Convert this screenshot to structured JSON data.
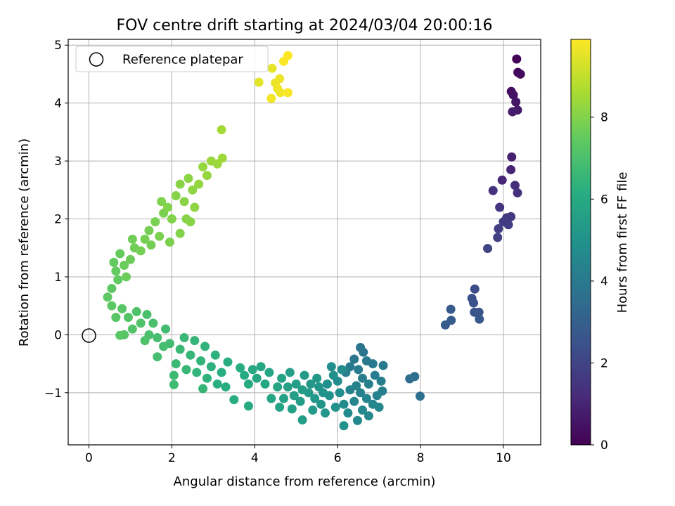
{
  "chart_data": {
    "type": "scatter",
    "title": "FOV centre drift starting at 2024/03/04 20:00:16",
    "xlabel": "Angular distance from reference (arcmin)",
    "ylabel": "Rotation from reference (arcmin)",
    "xlim": [
      -0.5,
      10.9
    ],
    "ylim": [
      -1.9,
      5.1
    ],
    "xticks": [
      "0",
      "2",
      "4",
      "6",
      "8",
      "10"
    ],
    "yticks": [
      "−1",
      "0",
      "1",
      "2",
      "3",
      "4",
      "5"
    ],
    "grid": true,
    "legend": {
      "location": "top-left",
      "entries": [
        "Reference platepar"
      ]
    },
    "colorbar": {
      "label": "Hours from first FF file",
      "min": 0,
      "max": 9.9,
      "ticks": [
        "0",
        "2",
        "4",
        "6",
        "8"
      ],
      "colormap": "viridis"
    },
    "reference_point": {
      "x": 0,
      "y": 0
    },
    "points": [
      {
        "x": 10.32,
        "y": 4.76,
        "t": 0.1
      },
      {
        "x": 10.35,
        "y": 4.53,
        "t": 0.2
      },
      {
        "x": 10.41,
        "y": 4.5,
        "t": 0.3
      },
      {
        "x": 10.19,
        "y": 4.2,
        "t": 0.4
      },
      {
        "x": 10.24,
        "y": 4.14,
        "t": 0.5
      },
      {
        "x": 10.3,
        "y": 4.02,
        "t": 0.6
      },
      {
        "x": 10.34,
        "y": 3.88,
        "t": 0.7
      },
      {
        "x": 10.22,
        "y": 3.85,
        "t": 0.8
      },
      {
        "x": 10.2,
        "y": 3.07,
        "t": 0.9
      },
      {
        "x": 10.18,
        "y": 2.85,
        "t": 1.0
      },
      {
        "x": 9.97,
        "y": 2.67,
        "t": 1.1
      },
      {
        "x": 10.28,
        "y": 2.58,
        "t": 1.2
      },
      {
        "x": 10.34,
        "y": 2.45,
        "t": 1.3
      },
      {
        "x": 9.75,
        "y": 2.49,
        "t": 1.4
      },
      {
        "x": 9.91,
        "y": 2.2,
        "t": 1.5
      },
      {
        "x": 10.18,
        "y": 2.04,
        "t": 1.6
      },
      {
        "x": 10.08,
        "y": 2.02,
        "t": 1.65
      },
      {
        "x": 10.0,
        "y": 1.95,
        "t": 1.7
      },
      {
        "x": 10.12,
        "y": 1.9,
        "t": 1.75
      },
      {
        "x": 9.88,
        "y": 1.83,
        "t": 1.8
      },
      {
        "x": 9.86,
        "y": 1.68,
        "t": 1.9
      },
      {
        "x": 9.62,
        "y": 1.49,
        "t": 2.0
      },
      {
        "x": 9.31,
        "y": 0.79,
        "t": 2.3
      },
      {
        "x": 9.24,
        "y": 0.63,
        "t": 2.4
      },
      {
        "x": 9.28,
        "y": 0.55,
        "t": 2.5
      },
      {
        "x": 9.41,
        "y": 0.39,
        "t": 2.55
      },
      {
        "x": 9.3,
        "y": 0.39,
        "t": 2.6
      },
      {
        "x": 9.42,
        "y": 0.27,
        "t": 2.7
      },
      {
        "x": 8.73,
        "y": 0.44,
        "t": 2.8
      },
      {
        "x": 8.74,
        "y": 0.25,
        "t": 2.85
      },
      {
        "x": 8.6,
        "y": 0.17,
        "t": 2.9
      },
      {
        "x": 7.74,
        "y": -0.76,
        "t": 3.5
      },
      {
        "x": 7.86,
        "y": -0.72,
        "t": 3.55
      },
      {
        "x": 7.99,
        "y": -1.06,
        "t": 3.6
      },
      {
        "x": 6.55,
        "y": -0.22,
        "t": 3.8
      },
      {
        "x": 6.62,
        "y": -0.3,
        "t": 3.85
      },
      {
        "x": 6.4,
        "y": -0.42,
        "t": 3.9
      },
      {
        "x": 6.7,
        "y": -0.45,
        "t": 3.95
      },
      {
        "x": 6.3,
        "y": -0.55,
        "t": 4.0
      },
      {
        "x": 6.85,
        "y": -0.5,
        "t": 4.0
      },
      {
        "x": 7.1,
        "y": -0.53,
        "t": 4.05
      },
      {
        "x": 6.5,
        "y": -0.6,
        "t": 4.1
      },
      {
        "x": 6.9,
        "y": -0.7,
        "t": 4.1
      },
      {
        "x": 7.05,
        "y": -0.8,
        "t": 4.15
      },
      {
        "x": 6.2,
        "y": -0.65,
        "t": 4.2
      },
      {
        "x": 6.6,
        "y": -0.75,
        "t": 4.2
      },
      {
        "x": 6.75,
        "y": -0.85,
        "t": 4.25
      },
      {
        "x": 6.45,
        "y": -0.88,
        "t": 4.3
      },
      {
        "x": 7.08,
        "y": -0.97,
        "t": 4.3
      },
      {
        "x": 6.95,
        "y": -1.05,
        "t": 4.35
      },
      {
        "x": 6.3,
        "y": -0.95,
        "t": 4.4
      },
      {
        "x": 6.55,
        "y": -1.0,
        "t": 4.4
      },
      {
        "x": 6.7,
        "y": -1.1,
        "t": 4.45
      },
      {
        "x": 6.85,
        "y": -1.2,
        "t": 4.5
      },
      {
        "x": 7.0,
        "y": -1.25,
        "t": 4.5
      },
      {
        "x": 6.4,
        "y": -1.15,
        "t": 4.55
      },
      {
        "x": 6.6,
        "y": -1.3,
        "t": 4.6
      },
      {
        "x": 6.75,
        "y": -1.4,
        "t": 4.6
      },
      {
        "x": 6.48,
        "y": -1.48,
        "t": 4.65
      },
      {
        "x": 6.15,
        "y": -1.2,
        "t": 4.7
      },
      {
        "x": 6.25,
        "y": -1.35,
        "t": 4.7
      },
      {
        "x": 6.05,
        "y": -1.0,
        "t": 4.75
      },
      {
        "x": 6.0,
        "y": -0.8,
        "t": 4.8
      },
      {
        "x": 6.1,
        "y": -0.6,
        "t": 4.8
      },
      {
        "x": 5.85,
        "y": -0.55,
        "t": 4.85
      },
      {
        "x": 5.9,
        "y": -0.7,
        "t": 4.9
      },
      {
        "x": 5.75,
        "y": -0.85,
        "t": 4.9
      },
      {
        "x": 5.8,
        "y": -1.05,
        "t": 4.95
      },
      {
        "x": 5.95,
        "y": -1.25,
        "t": 5.0
      },
      {
        "x": 6.15,
        "y": -1.57,
        "t": 5.0
      },
      {
        "x": 5.65,
        "y": -1.0,
        "t": 5.05
      },
      {
        "x": 5.55,
        "y": -0.9,
        "t": 5.1
      },
      {
        "x": 5.6,
        "y": -1.2,
        "t": 5.1
      },
      {
        "x": 5.7,
        "y": -1.35,
        "t": 5.15
      },
      {
        "x": 5.45,
        "y": -1.1,
        "t": 5.2
      },
      {
        "x": 5.5,
        "y": -0.75,
        "t": 5.2
      },
      {
        "x": 5.35,
        "y": -0.85,
        "t": 5.25
      },
      {
        "x": 5.3,
        "y": -1.0,
        "t": 5.3
      },
      {
        "x": 5.4,
        "y": -1.3,
        "t": 5.3
      },
      {
        "x": 5.2,
        "y": -0.7,
        "t": 5.35
      },
      {
        "x": 5.15,
        "y": -0.95,
        "t": 5.4
      },
      {
        "x": 5.1,
        "y": -1.15,
        "t": 5.4
      },
      {
        "x": 5.15,
        "y": -1.47,
        "t": 5.45
      },
      {
        "x": 5.0,
        "y": -0.85,
        "t": 5.5
      },
      {
        "x": 4.95,
        "y": -1.05,
        "t": 5.5
      },
      {
        "x": 4.9,
        "y": -1.28,
        "t": 5.55
      },
      {
        "x": 4.85,
        "y": -0.65,
        "t": 5.6
      },
      {
        "x": 4.8,
        "y": -0.9,
        "t": 5.6
      },
      {
        "x": 4.7,
        "y": -1.1,
        "t": 5.65
      },
      {
        "x": 4.6,
        "y": -1.25,
        "t": 5.7
      },
      {
        "x": 4.65,
        "y": -0.75,
        "t": 5.7
      },
      {
        "x": 4.55,
        "y": -0.9,
        "t": 5.75
      },
      {
        "x": 4.4,
        "y": -1.1,
        "t": 5.8
      },
      {
        "x": 4.35,
        "y": -0.65,
        "t": 5.8
      },
      {
        "x": 4.25,
        "y": -0.85,
        "t": 5.85
      },
      {
        "x": 4.15,
        "y": -0.55,
        "t": 5.9
      },
      {
        "x": 4.05,
        "y": -0.75,
        "t": 5.9
      },
      {
        "x": 3.95,
        "y": -0.6,
        "t": 5.95
      },
      {
        "x": 3.85,
        "y": -0.85,
        "t": 6.0
      },
      {
        "x": 3.85,
        "y": -1.23,
        "t": 6.0
      },
      {
        "x": 3.75,
        "y": -0.7,
        "t": 6.05
      },
      {
        "x": 3.65,
        "y": -0.57,
        "t": 6.1
      },
      {
        "x": 3.5,
        "y": -1.12,
        "t": 6.1
      },
      {
        "x": 3.3,
        "y": -0.9,
        "t": 6.15
      },
      {
        "x": 3.35,
        "y": -0.47,
        "t": 6.2
      },
      {
        "x": 3.2,
        "y": -0.65,
        "t": 6.2
      },
      {
        "x": 3.1,
        "y": -0.85,
        "t": 6.25
      },
      {
        "x": 3.05,
        "y": -0.35,
        "t": 6.3
      },
      {
        "x": 2.95,
        "y": -0.55,
        "t": 6.3
      },
      {
        "x": 2.85,
        "y": -0.75,
        "t": 6.35
      },
      {
        "x": 2.8,
        "y": -0.2,
        "t": 6.4
      },
      {
        "x": 2.7,
        "y": -0.45,
        "t": 6.4
      },
      {
        "x": 2.6,
        "y": -0.65,
        "t": 6.45
      },
      {
        "x": 2.75,
        "y": -0.93,
        "t": 6.5
      },
      {
        "x": 2.55,
        "y": -0.1,
        "t": 6.5
      },
      {
        "x": 2.45,
        "y": -0.35,
        "t": 6.55
      },
      {
        "x": 2.35,
        "y": -0.6,
        "t": 6.6
      },
      {
        "x": 2.3,
        "y": -0.05,
        "t": 6.6
      },
      {
        "x": 2.2,
        "y": -0.25,
        "t": 6.65
      },
      {
        "x": 2.1,
        "y": -0.5,
        "t": 6.7
      },
      {
        "x": 2.05,
        "y": -0.7,
        "t": 6.7
      },
      {
        "x": 2.05,
        "y": -0.86,
        "t": 6.75
      },
      {
        "x": 1.95,
        "y": -0.15,
        "t": 6.8
      },
      {
        "x": 1.85,
        "y": 0.1,
        "t": 6.8
      },
      {
        "x": 1.8,
        "y": -0.2,
        "t": 6.85
      },
      {
        "x": 1.65,
        "y": -0.05,
        "t": 6.9
      },
      {
        "x": 1.65,
        "y": -0.38,
        "t": 6.9
      },
      {
        "x": 1.55,
        "y": 0.2,
        "t": 6.95
      },
      {
        "x": 1.45,
        "y": 0.0,
        "t": 7.0
      },
      {
        "x": 1.4,
        "y": 0.35,
        "t": 7.0
      },
      {
        "x": 1.35,
        "y": -0.1,
        "t": 7.05
      },
      {
        "x": 1.25,
        "y": 0.2,
        "t": 7.1
      },
      {
        "x": 1.15,
        "y": 0.4,
        "t": 7.1
      },
      {
        "x": 1.05,
        "y": 0.1,
        "t": 7.15
      },
      {
        "x": 0.95,
        "y": 0.3,
        "t": 7.2
      },
      {
        "x": 0.85,
        "y": 0.0,
        "t": 7.2
      },
      {
        "x": 0.8,
        "y": 0.45,
        "t": 7.25
      },
      {
        "x": 0.75,
        "y": -0.01,
        "t": 7.3
      },
      {
        "x": 0.65,
        "y": 0.3,
        "t": 7.3
      },
      {
        "x": 0.55,
        "y": 0.5,
        "t": 7.35
      },
      {
        "x": 0.45,
        "y": 0.65,
        "t": 7.4
      },
      {
        "x": 0.55,
        "y": 0.8,
        "t": 7.4
      },
      {
        "x": 0.7,
        "y": 0.95,
        "t": 7.45
      },
      {
        "x": 0.65,
        "y": 1.1,
        "t": 7.5
      },
      {
        "x": 0.6,
        "y": 1.25,
        "t": 7.5
      },
      {
        "x": 0.75,
        "y": 1.4,
        "t": 7.55
      },
      {
        "x": 0.85,
        "y": 1.2,
        "t": 7.6
      },
      {
        "x": 0.9,
        "y": 1.0,
        "t": 7.6
      },
      {
        "x": 1.0,
        "y": 1.3,
        "t": 7.65
      },
      {
        "x": 1.1,
        "y": 1.5,
        "t": 7.7
      },
      {
        "x": 1.05,
        "y": 1.65,
        "t": 7.7
      },
      {
        "x": 1.25,
        "y": 1.45,
        "t": 7.75
      },
      {
        "x": 1.35,
        "y": 1.65,
        "t": 7.8
      },
      {
        "x": 1.45,
        "y": 1.8,
        "t": 7.8
      },
      {
        "x": 1.6,
        "y": 1.95,
        "t": 7.85
      },
      {
        "x": 1.7,
        "y": 1.7,
        "t": 7.9
      },
      {
        "x": 1.8,
        "y": 2.1,
        "t": 7.9
      },
      {
        "x": 1.75,
        "y": 2.3,
        "t": 7.95
      },
      {
        "x": 1.9,
        "y": 2.2,
        "t": 8.0
      },
      {
        "x": 2.0,
        "y": 2.0,
        "t": 8.0
      },
      {
        "x": 2.1,
        "y": 2.4,
        "t": 8.05
      },
      {
        "x": 2.2,
        "y": 2.6,
        "t": 8.1
      },
      {
        "x": 2.3,
        "y": 2.3,
        "t": 8.1
      },
      {
        "x": 2.4,
        "y": 2.7,
        "t": 8.15
      },
      {
        "x": 2.5,
        "y": 2.5,
        "t": 8.2
      },
      {
        "x": 2.55,
        "y": 2.2,
        "t": 8.2
      },
      {
        "x": 2.65,
        "y": 2.6,
        "t": 8.25
      },
      {
        "x": 2.75,
        "y": 2.9,
        "t": 8.3
      },
      {
        "x": 2.85,
        "y": 2.75,
        "t": 8.3
      },
      {
        "x": 2.95,
        "y": 3.0,
        "t": 8.35
      },
      {
        "x": 3.1,
        "y": 2.95,
        "t": 8.4
      },
      {
        "x": 3.22,
        "y": 3.05,
        "t": 8.45
      },
      {
        "x": 3.2,
        "y": 3.54,
        "t": 8.5
      },
      {
        "x": 2.2,
        "y": 1.75,
        "t": 8.0
      },
      {
        "x": 2.35,
        "y": 2.0,
        "t": 8.05
      },
      {
        "x": 1.95,
        "y": 1.6,
        "t": 7.9
      },
      {
        "x": 2.45,
        "y": 1.95,
        "t": 8.1
      },
      {
        "x": 1.5,
        "y": 1.55,
        "t": 7.75
      },
      {
        "x": 4.1,
        "y": 4.36,
        "t": 9.5
      },
      {
        "x": 4.42,
        "y": 4.6,
        "t": 9.55
      },
      {
        "x": 4.5,
        "y": 4.35,
        "t": 9.6
      },
      {
        "x": 4.6,
        "y": 4.42,
        "t": 9.65
      },
      {
        "x": 4.55,
        "y": 4.25,
        "t": 9.7
      },
      {
        "x": 4.62,
        "y": 4.18,
        "t": 9.72
      },
      {
        "x": 4.4,
        "y": 4.08,
        "t": 9.75
      },
      {
        "x": 4.8,
        "y": 4.18,
        "t": 9.8
      },
      {
        "x": 4.7,
        "y": 4.72,
        "t": 9.85
      },
      {
        "x": 4.8,
        "y": 4.82,
        "t": 9.9
      }
    ]
  }
}
